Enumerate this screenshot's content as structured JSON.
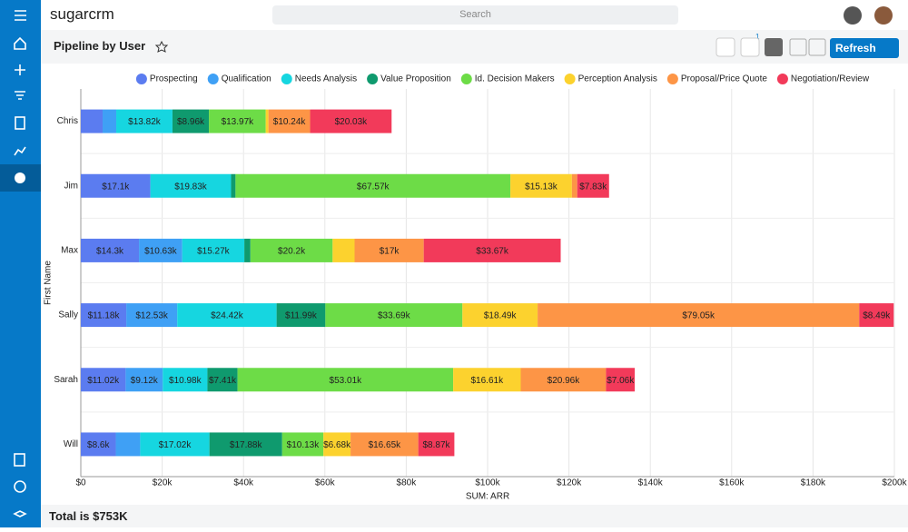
{
  "header": {
    "logo": "sugarcrm",
    "search": "Search"
  },
  "dashlet": {
    "title": "Pipeline by User",
    "filter_count": 1,
    "refresh": "Refresh"
  },
  "chart_data": {
    "type": "bar",
    "orientation": "horizontal",
    "stacked": true,
    "grid": true,
    "legend": "top",
    "ylabel": "First Name",
    "xlabel": "SUM: ARR",
    "categories": [
      "Chris",
      "Jim",
      "Max",
      "Sally",
      "Sarah",
      "Will"
    ],
    "xlim": [
      0,
      200000
    ],
    "xticks": [
      {
        "value": 0,
        "label": "$0"
      },
      {
        "value": 20000,
        "label": "$20k"
      },
      {
        "value": 40000,
        "label": "$40k"
      },
      {
        "value": 60000,
        "label": "$60k"
      },
      {
        "value": 80000,
        "label": "$80k"
      },
      {
        "value": 100000,
        "label": "$100k"
      },
      {
        "value": 120000,
        "label": "$120k"
      },
      {
        "value": 140000,
        "label": "$140k"
      },
      {
        "value": 160000,
        "label": "$160k"
      },
      {
        "value": 180000,
        "label": "$180k"
      },
      {
        "value": 200000,
        "label": "$200k"
      }
    ],
    "series": [
      {
        "name": "Prospecting",
        "color": "#5b7cf0",
        "values": [
          5360,
          17100,
          14300,
          11180,
          11020,
          8600
        ],
        "value_labels": [
          null,
          "$17.1k",
          "$14.3k",
          "$11.18k",
          "$11.02k",
          "$8.6k"
        ]
      },
      {
        "name": "Qualification",
        "color": "#3fa0f5",
        "values": [
          3350,
          0,
          10630,
          12530,
          9120,
          6000
        ],
        "value_labels": [
          null,
          null,
          "$10.63k",
          "$12.53k",
          "$9.12k",
          null
        ]
      },
      {
        "name": "Needs Analysis",
        "color": "#16d6e0",
        "values": [
          13820,
          19830,
          15270,
          24420,
          10980,
          17020
        ],
        "value_labels": [
          "$13.82k",
          "$19.83k",
          "$15.27k",
          "$24.42k",
          "$10.98k",
          "$17.02k"
        ]
      },
      {
        "name": "Value Proposition",
        "color": "#0f9a6e",
        "values": [
          8960,
          1100,
          1500,
          11990,
          7410,
          17880
        ],
        "value_labels": [
          "$8.96k",
          null,
          null,
          "$11.99k",
          "$7.41k",
          "$17.88k"
        ]
      },
      {
        "name": "Id. Decision Makers",
        "color": "#6ddc47",
        "values": [
          13970,
          67570,
          20200,
          33690,
          53010,
          10130
        ],
        "value_labels": [
          "$13.97k",
          "$67.57k",
          "$20.2k",
          "$33.69k",
          "$53.01k",
          "$10.13k"
        ]
      },
      {
        "name": "Perception Analysis",
        "color": "#fcd22e",
        "values": [
          670,
          15130,
          5400,
          18490,
          16610,
          6680
        ],
        "value_labels": [
          null,
          "$15.13k",
          null,
          "$18.49k",
          "$16.61k",
          "$6.68k"
        ]
      },
      {
        "name": "Proposal/Price Quote",
        "color": "#fd9546",
        "values": [
          10240,
          1300,
          17000,
          79050,
          20960,
          16650
        ],
        "value_labels": [
          "$10.24k",
          null,
          "$17k",
          "$79.05k",
          "$20.96k",
          "$16.65k"
        ]
      },
      {
        "name": "Negotiation/Review",
        "color": "#f23a5a",
        "values": [
          20030,
          7830,
          33670,
          8490,
          7060,
          8870
        ],
        "value_labels": [
          "$20.03k",
          "$7.83k",
          "$33.67k",
          "$8.49k",
          "$7.06k",
          "$8.87k"
        ]
      }
    ]
  },
  "footer": {
    "total": "Total is $753K"
  }
}
